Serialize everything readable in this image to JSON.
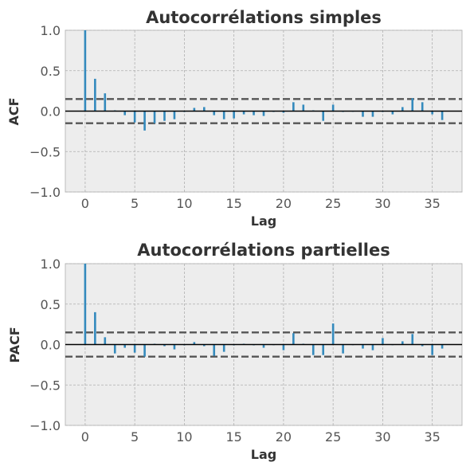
{
  "chart_data": [
    {
      "type": "bar",
      "title": "Autocorrélations simples",
      "xlabel": "Lag",
      "ylabel": "ACF",
      "xlim": [
        -2,
        38
      ],
      "ylim": [
        -1.0,
        1.0
      ],
      "xticks": [
        "0",
        "5",
        "10",
        "15",
        "20",
        "25",
        "30",
        "35"
      ],
      "yticks": [
        "−1.0",
        "−0.5",
        "0.0",
        "0.5",
        "1.0"
      ],
      "confidence_band": 0.15,
      "grid": true,
      "lags": [
        0,
        1,
        2,
        3,
        4,
        5,
        6,
        7,
        8,
        9,
        10,
        11,
        12,
        13,
        14,
        15,
        16,
        17,
        18,
        19,
        20,
        21,
        22,
        23,
        24,
        25,
        26,
        27,
        28,
        29,
        30,
        31,
        32,
        33,
        34,
        35,
        36
      ],
      "values": [
        1.0,
        0.4,
        0.22,
        0.01,
        -0.05,
        -0.14,
        -0.24,
        -0.15,
        -0.12,
        -0.1,
        -0.01,
        0.04,
        0.05,
        -0.05,
        -0.1,
        -0.09,
        -0.04,
        -0.05,
        -0.06,
        -0.01,
        -0.02,
        0.11,
        0.08,
        0.01,
        -0.12,
        0.08,
        -0.01,
        0.0,
        -0.07,
        -0.07,
        -0.01,
        -0.04,
        0.05,
        0.16,
        0.11,
        -0.04,
        -0.11
      ],
      "colors": {
        "bars": "#348abd",
        "zero": "#000000",
        "confidence": "#555555",
        "background": "#ededed"
      }
    },
    {
      "type": "bar",
      "title": "Autocorrélations partielles",
      "xlabel": "Lag",
      "ylabel": "PACF",
      "xlim": [
        -2,
        38
      ],
      "ylim": [
        -1.0,
        1.0
      ],
      "xticks": [
        "0",
        "5",
        "10",
        "15",
        "20",
        "25",
        "30",
        "35"
      ],
      "yticks": [
        "−1.0",
        "−0.5",
        "0.0",
        "0.5",
        "1.0"
      ],
      "confidence_band": 0.15,
      "grid": true,
      "lags": [
        0,
        1,
        2,
        3,
        4,
        5,
        6,
        7,
        8,
        9,
        10,
        11,
        12,
        13,
        14,
        15,
        16,
        17,
        18,
        19,
        20,
        21,
        22,
        23,
        24,
        25,
        26,
        27,
        28,
        29,
        30,
        31,
        32,
        33,
        34,
        35,
        36
      ],
      "values": [
        1.0,
        0.4,
        0.09,
        -0.11,
        -0.04,
        -0.1,
        -0.15,
        0.01,
        -0.02,
        -0.06,
        -0.01,
        0.03,
        -0.02,
        -0.14,
        -0.09,
        -0.01,
        0.01,
        -0.01,
        -0.04,
        0.0,
        -0.07,
        0.14,
        0.01,
        -0.13,
        -0.13,
        0.26,
        -0.11,
        0.0,
        -0.05,
        -0.07,
        0.08,
        0.0,
        0.04,
        0.13,
        -0.02,
        -0.13,
        -0.05
      ],
      "colors": {
        "bars": "#348abd",
        "zero": "#000000",
        "confidence": "#555555",
        "background": "#ededed"
      }
    }
  ]
}
